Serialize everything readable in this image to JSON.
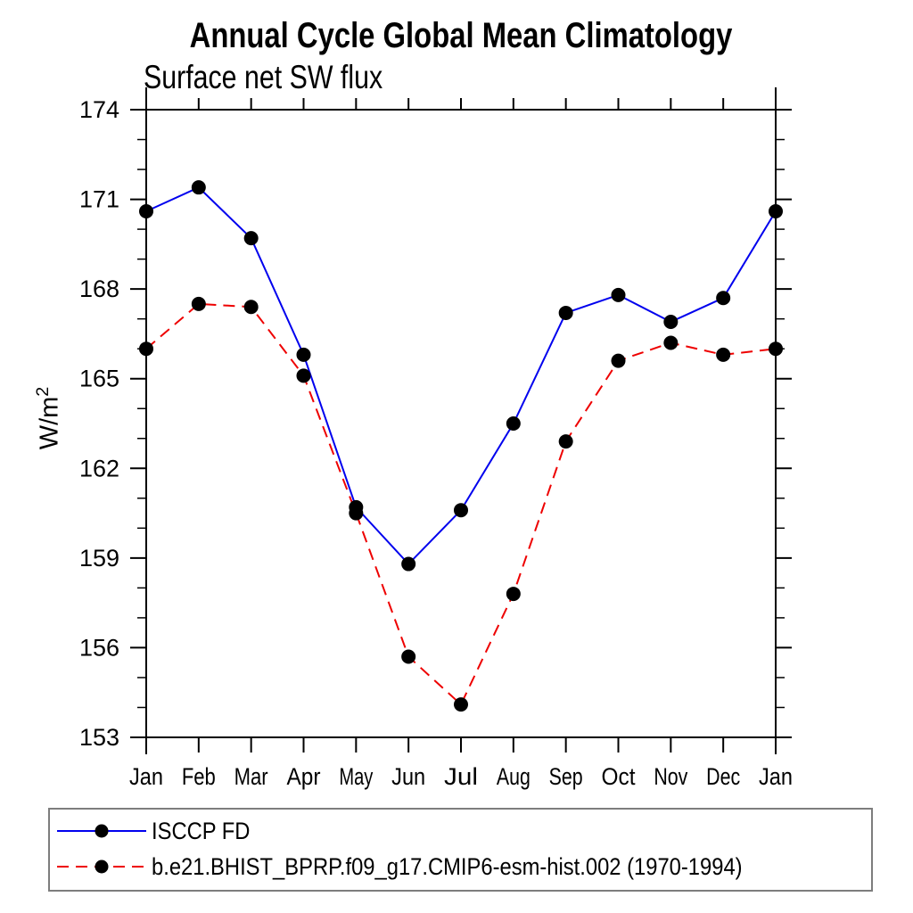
{
  "chart_data": {
    "type": "line",
    "title": "Annual Cycle Global Mean Climatology",
    "subtitle": "Surface net SW flux",
    "ylabel_base": "W/m",
    "ylabel_exponent": "2",
    "categories": [
      "Jan",
      "Feb",
      "Mar",
      "Apr",
      "May",
      "Jun",
      "Jul",
      "Aug",
      "Sep",
      "Oct",
      "Nov",
      "Dec",
      "Jan"
    ],
    "y_axis": {
      "major_ticks": [
        153,
        156,
        159,
        162,
        165,
        168,
        171,
        174
      ],
      "minor_tick_step": 1,
      "range": [
        153,
        174
      ]
    },
    "grid": false,
    "legend_position": "bottom-left-box",
    "series": [
      {
        "name": "ISCCP FD",
        "color": "#0000ee",
        "line_style": "solid",
        "marker": "filled-black-circle",
        "values": [
          170.6,
          171.4,
          169.7,
          165.8,
          160.7,
          158.8,
          160.6,
          163.5,
          167.2,
          167.8,
          166.9,
          167.7,
          170.6
        ]
      },
      {
        "name": "b.e21.BHIST_BPRP.f09_g17.CMIP6-esm-hist.002 (1970-1994)",
        "color": "#ee0000",
        "line_style": "dashed",
        "marker": "filled-black-circle",
        "values": [
          166.0,
          167.5,
          167.4,
          165.1,
          160.5,
          155.7,
          154.1,
          157.8,
          162.9,
          165.6,
          166.2,
          165.8,
          166.0
        ]
      }
    ]
  },
  "colors": {
    "axis": "#000000",
    "marker": "#000000",
    "background": "#ffffff",
    "legend_border": "#7d7d7d"
  }
}
